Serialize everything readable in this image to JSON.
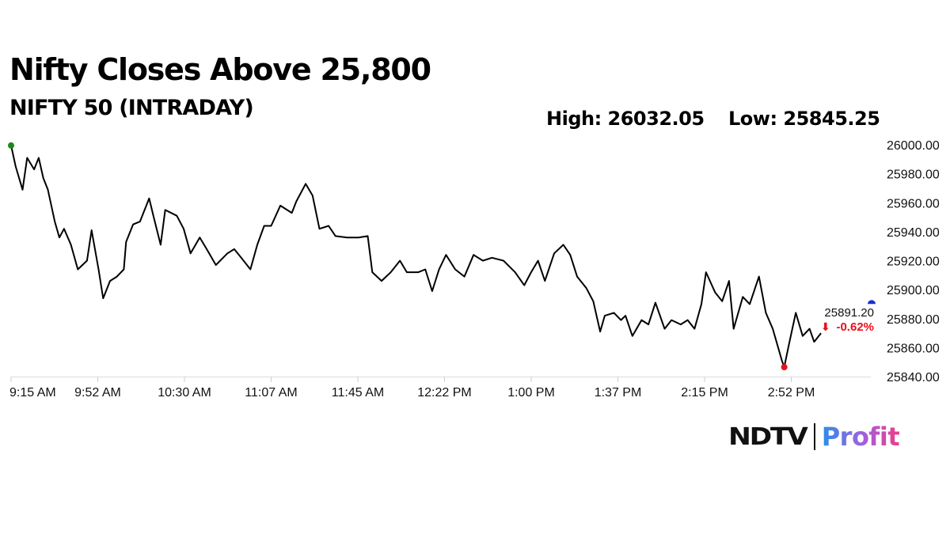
{
  "title": "Nifty Closes Above 25,800",
  "subtitle": "NIFTY 50 (INTRADAY)",
  "high_label": "High: 26032.05",
  "low_label": "Low: 25845.25",
  "logo": {
    "brand": "NDTV",
    "product": "Profit"
  },
  "chart_data": {
    "type": "line",
    "title": "NIFTY 50 (INTRADAY)",
    "xlim": [
      "09:15",
      "15:30"
    ],
    "ylim": [
      25840,
      26000
    ],
    "x_ticks": [
      "9:15 AM",
      "9:52 AM",
      "10:30 AM",
      "11:07 AM",
      "11:45 AM",
      "12:22 PM",
      "1:00 PM",
      "1:37 PM",
      "2:15 PM",
      "2:52 PM"
    ],
    "y_ticks": [
      "25840.00",
      "25860.00",
      "25880.00",
      "25900.00",
      "25920.00",
      "25940.00",
      "25960.00",
      "25980.00",
      "26000.00"
    ],
    "grid": false,
    "last_price": "25891.20",
    "last_price_value": 25891.2,
    "change": "-0.62%",
    "colors": {
      "line": "#000000",
      "open_marker": "#1a8a1a",
      "low_marker": "#e8101a",
      "last_marker": "#1a2fd6",
      "change": "#e8101a"
    },
    "series": [
      {
        "x": [
          "09:15",
          "09:17",
          "09:20",
          "09:22",
          "09:25",
          "09:27",
          "09:29",
          "09:31",
          "09:34",
          "09:36",
          "09:38",
          "09:41",
          "09:44",
          "09:48",
          "09:50",
          "09:53",
          "09:55",
          "09:58",
          "10:01",
          "10:04",
          "10:05",
          "10:08",
          "10:11",
          "10:15",
          "10:17",
          "10:20",
          "10:22",
          "10:27",
          "10:30",
          "10:33",
          "10:37",
          "10:40",
          "10:44",
          "10:49",
          "10:52",
          "10:55",
          "10:59",
          "11:02",
          "11:05",
          "11:08",
          "11:12",
          "11:17",
          "11:19",
          "11:23",
          "11:26",
          "11:29",
          "11:33",
          "11:36",
          "11:41",
          "11:46",
          "11:50",
          "11:52",
          "11:56",
          "12:00",
          "12:04",
          "12:07",
          "12:12",
          "12:15",
          "12:18",
          "12:21",
          "12:24",
          "12:28",
          "12:32",
          "12:36",
          "12:40",
          "12:44",
          "12:49",
          "12:54",
          "12:58",
          "13:01",
          "13:04",
          "13:07",
          "13:11",
          "13:15",
          "13:18",
          "13:21",
          "13:25",
          "13:28",
          "13:31",
          "13:33",
          "13:37",
          "13:40",
          "13:42",
          "13:45",
          "13:49",
          "13:52",
          "13:55",
          "13:59",
          "14:02",
          "14:06",
          "14:09",
          "14:12",
          "14:15",
          "14:17",
          "14:21",
          "14:24",
          "14:27",
          "14:29",
          "14:33",
          "14:36",
          "14:40",
          "14:43",
          "14:46",
          "14:50",
          "14:51",
          "14:53",
          "14:56",
          "14:59",
          "15:02",
          "15:04",
          "15:07"
        ],
        "values": [
          25999.5,
          25985,
          25969,
          25991,
          25983,
          25991,
          25977,
          25969,
          25947,
          25936,
          25942,
          25931,
          25914,
          25920,
          25941,
          25914,
          25894,
          25906,
          25909,
          25914,
          25933,
          25945,
          25947,
          25963,
          25950,
          25931,
          25955,
          25951,
          25942,
          25925,
          25936,
          25928,
          25917,
          25925,
          25928,
          25922,
          25914,
          25931,
          25944,
          25944,
          25958,
          25953,
          25961,
          25973,
          25965,
          25942,
          25944,
          25937,
          25936,
          25936,
          25937,
          25912,
          25906,
          25912,
          25920,
          25912,
          25912,
          25914,
          25899,
          25914,
          25924,
          25914,
          25909,
          25924,
          25920,
          25922,
          25920,
          25912,
          25903,
          25912,
          25920,
          25906,
          25925,
          25931,
          25924,
          25909,
          25901,
          25892,
          25871,
          25882,
          25884,
          25879,
          25882,
          25868,
          25879,
          25876,
          25891,
          25873,
          25879,
          25876,
          25879,
          25873,
          25890,
          25912,
          25898,
          25892,
          25906,
          25873,
          25895,
          25890,
          25909,
          25884,
          25873,
          25851,
          25846.5,
          25862,
          25884,
          25868,
          25873,
          25864,
          25870
        ]
      }
    ]
  }
}
